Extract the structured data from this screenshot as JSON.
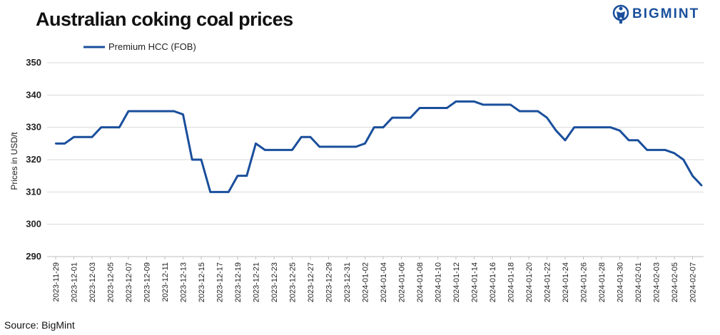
{
  "header": {
    "title": "Australian coking coal prices",
    "brand": "BIGMINT"
  },
  "footer": {
    "source": "Source: BigMint"
  },
  "colors": {
    "line": "#1a4f9c",
    "grid": "#d9d9d9",
    "brand": "#1a4f9c"
  },
  "icons": {
    "logo": "bigmint-logo-icon"
  },
  "chart_data": {
    "type": "line",
    "title": "Australian coking coal prices",
    "ylabel": "Prices in USD/t",
    "xlabel": "",
    "ylim": [
      290,
      350
    ],
    "yticks": [
      290,
      300,
      310,
      320,
      330,
      340,
      350
    ],
    "grid": true,
    "legend_position": "top-left",
    "x": [
      "2023-11-29",
      "2023-11-30",
      "2023-12-01",
      "2023-12-02",
      "2023-12-03",
      "2023-12-04",
      "2023-12-05",
      "2023-12-06",
      "2023-12-07",
      "2023-12-08",
      "2023-12-09",
      "2023-12-10",
      "2023-12-11",
      "2023-12-12",
      "2023-12-13",
      "2023-12-14",
      "2023-12-15",
      "2023-12-16",
      "2023-12-17",
      "2023-12-18",
      "2023-12-19",
      "2023-12-20",
      "2023-12-21",
      "2023-12-22",
      "2023-12-23",
      "2023-12-24",
      "2023-12-25",
      "2023-12-26",
      "2023-12-27",
      "2023-12-28",
      "2023-12-29",
      "2023-12-30",
      "2023-12-31",
      "2024-01-01",
      "2024-01-02",
      "2024-01-03",
      "2024-01-04",
      "2024-01-05",
      "2024-01-06",
      "2024-01-07",
      "2024-01-08",
      "2024-01-09",
      "2024-01-10",
      "2024-01-11",
      "2024-01-12",
      "2024-01-13",
      "2024-01-14",
      "2024-01-15",
      "2024-01-16",
      "2024-01-17",
      "2024-01-18",
      "2024-01-19",
      "2024-01-20",
      "2024-01-21",
      "2024-01-22",
      "2024-01-23",
      "2024-01-24",
      "2024-01-25",
      "2024-01-26",
      "2024-01-27",
      "2024-01-28",
      "2024-01-29",
      "2024-01-30",
      "2024-01-31",
      "2024-02-01",
      "2024-02-02",
      "2024-02-03",
      "2024-02-04",
      "2024-02-05",
      "2024-02-06",
      "2024-02-07",
      "2024-02-08"
    ],
    "xticks": [
      "2023-11-29",
      "2023-12-01",
      "2023-12-03",
      "2023-12-05",
      "2023-12-07",
      "2023-12-09",
      "2023-12-11",
      "2023-12-13",
      "2023-12-15",
      "2023-12-17",
      "2023-12-19",
      "2023-12-21",
      "2023-12-23",
      "2023-12-25",
      "2023-12-27",
      "2023-12-29",
      "2023-12-31",
      "2024-01-02",
      "2024-01-04",
      "2024-01-06",
      "2024-01-08",
      "2024-01-10",
      "2024-01-12",
      "2024-01-14",
      "2024-01-16",
      "2024-01-18",
      "2024-01-20",
      "2024-01-22",
      "2024-01-24",
      "2024-01-26",
      "2024-01-28",
      "2024-01-30",
      "2024-02-01",
      "2024-02-03",
      "2024-02-05",
      "2024-02-07"
    ],
    "series": [
      {
        "name": "Premium HCC (FOB)",
        "values": [
          325,
          325,
          327,
          327,
          327,
          330,
          330,
          330,
          335,
          335,
          335,
          335,
          335,
          335,
          334,
          320,
          320,
          310,
          310,
          310,
          315,
          315,
          325,
          323,
          323,
          323,
          323,
          327,
          327,
          324,
          324,
          324,
          324,
          324,
          325,
          330,
          330,
          333,
          333,
          333,
          336,
          336,
          336,
          336,
          338,
          338,
          338,
          337,
          337,
          337,
          337,
          335,
          335,
          335,
          333,
          329,
          326,
          330,
          330,
          330,
          330,
          330,
          329,
          326,
          326,
          323,
          323,
          323,
          322,
          320,
          315,
          312
        ]
      }
    ]
  }
}
